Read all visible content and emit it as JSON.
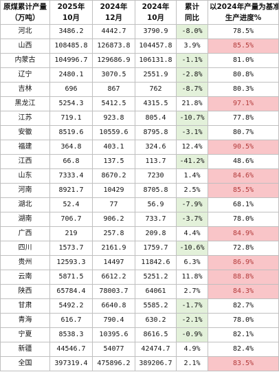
{
  "header": {
    "col1": [
      "原煤累计产量",
      "（万吨）"
    ],
    "col2": [
      "2025年",
      "10月"
    ],
    "col3": [
      "2024年",
      "12月"
    ],
    "col4": [
      "2024年",
      "10月"
    ],
    "col5": [
      "累计",
      "同比"
    ],
    "col6": [
      "以2024年产量为基准",
      "生产进度%"
    ]
  },
  "rows": [
    {
      "prov": "河北",
      "a": "3486.2",
      "b": "4442.7",
      "c": "3790.9",
      "yoy": "-8.0%",
      "prog": "78.5%",
      "yoy_neg": true,
      "hi": false
    },
    {
      "prov": "山西",
      "a": "108485.8",
      "b": "126873.8",
      "c": "104457.8",
      "yoy": "3.9%",
      "prog": "85.5%",
      "yoy_neg": false,
      "hi": true
    },
    {
      "prov": "内蒙古",
      "a": "104996.7",
      "b": "129686.9",
      "c": "106131.8",
      "yoy": "-1.1%",
      "prog": "81.0%",
      "yoy_neg": true,
      "hi": false
    },
    {
      "prov": "辽宁",
      "a": "2480.1",
      "b": "3070.5",
      "c": "2551.9",
      "yoy": "-2.8%",
      "prog": "80.8%",
      "yoy_neg": true,
      "hi": false
    },
    {
      "prov": "吉林",
      "a": "696",
      "b": "867",
      "c": "762",
      "yoy": "-8.7%",
      "prog": "80.3%",
      "yoy_neg": true,
      "hi": false
    },
    {
      "prov": "黑龙江",
      "a": "5254.3",
      "b": "5412.5",
      "c": "4315.5",
      "yoy": "21.8%",
      "prog": "97.1%",
      "yoy_neg": false,
      "hi": true
    },
    {
      "prov": "江苏",
      "a": "719.1",
      "b": "923.8",
      "c": "805.4",
      "yoy": "-10.7%",
      "prog": "77.8%",
      "yoy_neg": true,
      "hi": false
    },
    {
      "prov": "安徽",
      "a": "8519.6",
      "b": "10559.6",
      "c": "8795.8",
      "yoy": "-3.1%",
      "prog": "80.7%",
      "yoy_neg": true,
      "hi": false
    },
    {
      "prov": "福建",
      "a": "364.8",
      "b": "403.1",
      "c": "324.6",
      "yoy": "12.4%",
      "prog": "90.5%",
      "yoy_neg": false,
      "hi": true
    },
    {
      "prov": "江西",
      "a": "66.8",
      "b": "137.5",
      "c": "113.7",
      "yoy": "-41.2%",
      "prog": "48.6%",
      "yoy_neg": true,
      "hi": false
    },
    {
      "prov": "山东",
      "a": "7333.4",
      "b": "8670.2",
      "c": "7230",
      "yoy": "1.4%",
      "prog": "84.6%",
      "yoy_neg": false,
      "hi": true
    },
    {
      "prov": "河南",
      "a": "8921.7",
      "b": "10429",
      "c": "8705.8",
      "yoy": "2.5%",
      "prog": "85.5%",
      "yoy_neg": false,
      "hi": true
    },
    {
      "prov": "湖北",
      "a": "52.4",
      "b": "77",
      "c": "56.9",
      "yoy": "-7.9%",
      "prog": "68.1%",
      "yoy_neg": true,
      "hi": false
    },
    {
      "prov": "湖南",
      "a": "706.7",
      "b": "906.2",
      "c": "733.7",
      "yoy": "-3.7%",
      "prog": "78.0%",
      "yoy_neg": true,
      "hi": false
    },
    {
      "prov": "广西",
      "a": "219",
      "b": "257.8",
      "c": "209.8",
      "yoy": "4.4%",
      "prog": "84.9%",
      "yoy_neg": false,
      "hi": true
    },
    {
      "prov": "四川",
      "a": "1573.7",
      "b": "2161.9",
      "c": "1759.7",
      "yoy": "-10.6%",
      "prog": "72.8%",
      "yoy_neg": true,
      "hi": false
    },
    {
      "prov": "贵州",
      "a": "12593.3",
      "b": "14497",
      "c": "11842.6",
      "yoy": "6.3%",
      "prog": "86.9%",
      "yoy_neg": false,
      "hi": true
    },
    {
      "prov": "云南",
      "a": "5871.5",
      "b": "6612.2",
      "c": "5251.2",
      "yoy": "11.8%",
      "prog": "88.8%",
      "yoy_neg": false,
      "hi": true
    },
    {
      "prov": "陕西",
      "a": "65784.4",
      "b": "78003.7",
      "c": "64061",
      "yoy": "2.7%",
      "prog": "84.3%",
      "yoy_neg": false,
      "hi": true
    },
    {
      "prov": "甘肃",
      "a": "5492.2",
      "b": "6640.8",
      "c": "5585.2",
      "yoy": "-1.7%",
      "prog": "82.7%",
      "yoy_neg": true,
      "hi": false
    },
    {
      "prov": "青海",
      "a": "616.7",
      "b": "790.4",
      "c": "630.2",
      "yoy": "-2.1%",
      "prog": "78.0%",
      "yoy_neg": true,
      "hi": false
    },
    {
      "prov": "宁夏",
      "a": "8538.3",
      "b": "10395.6",
      "c": "8616.5",
      "yoy": "-0.9%",
      "prog": "82.1%",
      "yoy_neg": true,
      "hi": false
    },
    {
      "prov": "新疆",
      "a": "44546.7",
      "b": "54077",
      "c": "42474.7",
      "yoy": "4.9%",
      "prog": "82.4%",
      "yoy_neg": false,
      "hi": false
    },
    {
      "prov": "全国",
      "a": "397319.4",
      "b": "475896.2",
      "c": "389206.7",
      "yoy": "2.1%",
      "prog": "83.5%",
      "yoy_neg": false,
      "hi": true
    }
  ],
  "colors": {
    "negative_bg": "#e3f1da",
    "highlight_bg": "#f9c5c8",
    "highlight_text": "#b33a3a",
    "border": "#bfbfbf"
  }
}
